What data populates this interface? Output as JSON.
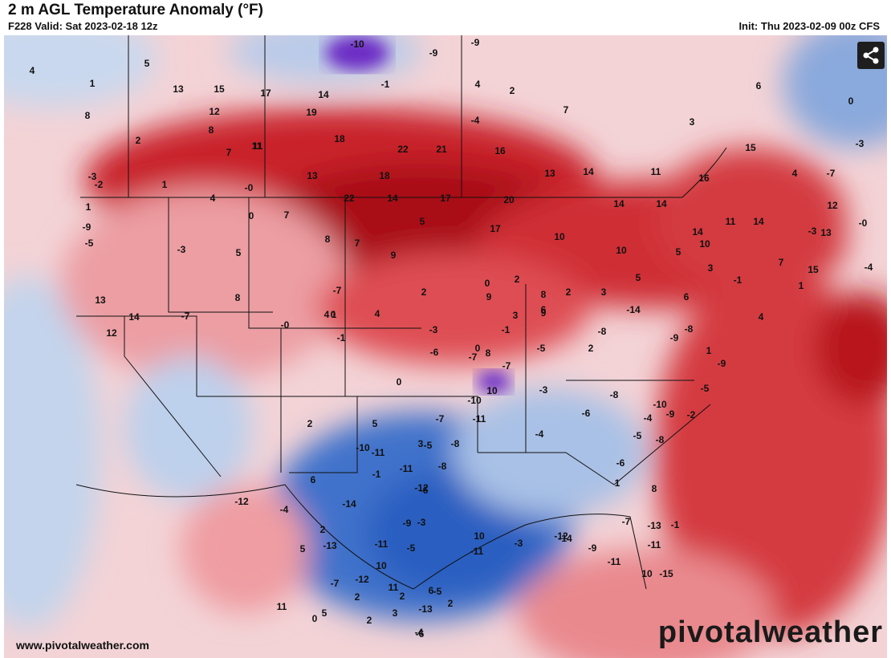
{
  "header": {
    "title": "2 m AGL Temperature Anomaly (°F)",
    "valid": "F228 Valid: Sat 2023-02-18 12z",
    "init": "Init: Thu 2023-02-09 00z CFS"
  },
  "footer": {
    "url": "www.pivotalweather.com",
    "brand": "pivotalweather"
  },
  "colors": {
    "warm_strong": "#b5101a",
    "warm_mid": "#df4d52",
    "warm_light": "#f1b3b7",
    "neutral": "#f8f1f2",
    "cool_light": "#b8cde9",
    "cool_mid": "#6f99d6",
    "cool_strong": "#2a5fc0",
    "extreme_cold": "#6c2bc4"
  },
  "anomaly_labels": [
    "-3",
    "4",
    "1",
    "5",
    "8",
    "2",
    "-3",
    "-2",
    "13",
    "15",
    "17",
    "14",
    "19",
    "11",
    "-10",
    "-9",
    "-9",
    "-1",
    "4",
    "2",
    "7",
    "-4",
    "1",
    "1",
    "-9",
    "6",
    "3",
    "0",
    "12",
    "8",
    "7",
    "11",
    "18",
    "22",
    "21",
    "16",
    "14",
    "11",
    "15",
    "-3",
    "-7",
    "4",
    "-0",
    "4",
    "13",
    "18",
    "22",
    "14",
    "17",
    "20",
    "16",
    "12",
    "-4",
    "-5",
    "-3",
    "5",
    "-0",
    "0",
    "7",
    "8",
    "7",
    "5",
    "9",
    "17",
    "13",
    "14",
    "14",
    "11",
    "14",
    "14",
    "-3",
    "1",
    "-1",
    "3",
    "7",
    "13",
    "15",
    "10",
    "10",
    "5",
    "5",
    "10",
    "13",
    "12",
    "14",
    "-7",
    "-7",
    "1",
    "4",
    "2",
    "2",
    "0",
    "9",
    "6",
    "3",
    "8",
    "2",
    "3",
    "6",
    "4",
    "8",
    "9",
    "-0",
    "0",
    "-1",
    "4",
    "-3",
    "-6",
    "0",
    "0",
    "-1",
    "-5",
    "2",
    "-8",
    "-14",
    "1",
    "-9",
    "-5",
    "-2",
    "-4",
    "-9",
    "-9",
    "-8",
    "-10",
    "-8",
    "-5",
    "-7",
    "-7",
    "8",
    "10",
    "-3",
    "-4",
    "-8",
    "-6",
    "-6",
    "1",
    "8",
    "-1",
    "-7",
    "-10",
    "-11",
    "-7",
    "-8",
    "-5",
    "3",
    "5",
    "-11",
    "-11",
    "-8",
    "-1",
    "2",
    "6",
    "-10",
    "-12",
    "-9",
    "-6",
    "-3",
    "-5",
    "-11",
    "10",
    "-14",
    "2",
    "5",
    "-4",
    "-12",
    "-11",
    "-15",
    "10",
    "-11",
    "-9",
    "-13",
    "-12",
    "-3",
    "-14",
    "-11",
    "10",
    "6",
    "2",
    "-4",
    "-13",
    "-12",
    "-7",
    "11",
    "2",
    "3",
    "2",
    "-6",
    "-13",
    "-5",
    "2",
    "5",
    "0",
    "11"
  ]
}
